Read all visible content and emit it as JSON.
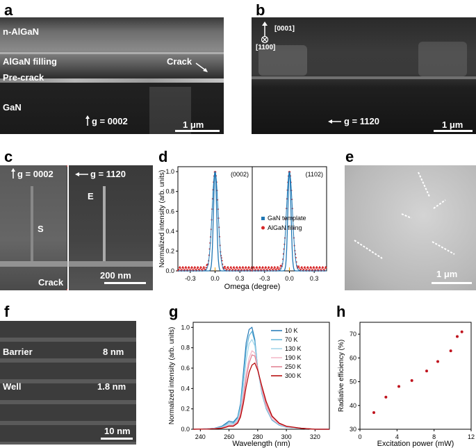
{
  "panels": {
    "a": {
      "letter": "a",
      "labels": {
        "nalgan": "n-AlGaN",
        "filling": "AlGaN filling",
        "precrack": "Pre-crack",
        "gan": "GaN",
        "crack": "Crack",
        "g": "g = 0002"
      },
      "scale": "1 μm"
    },
    "b": {
      "letter": "b",
      "labels": {
        "dir1": "[0001]",
        "dir2": "[1100]",
        "g": "g = 1120"
      },
      "scale": "1 μm"
    },
    "c": {
      "letter": "c",
      "labels": {
        "g_left": "g = 0002",
        "g_right": "g = 1120",
        "s": "S",
        "e": "E",
        "crack": "Crack"
      },
      "scale": "200 nm"
    },
    "e": {
      "letter": "e",
      "scale": "1 μm"
    },
    "f": {
      "letter": "f",
      "labels": {
        "barrier": "Barrier",
        "barrier_val": "8 nm",
        "well": "Well",
        "well_val": "1.8 nm"
      },
      "scale": "10 nm"
    }
  },
  "chart_data": [
    {
      "panel": "d",
      "type": "line",
      "ylabel": "Normalized intensity (arb. units)",
      "xlabel": "Omega (degree)",
      "subplots": [
        {
          "label": "(0002)"
        },
        {
          "label": "(1102)"
        }
      ],
      "xlim": [
        -0.45,
        0.45
      ],
      "ylim": [
        0,
        1.05
      ],
      "xticks": [
        -0.3,
        0.0,
        0.3
      ],
      "yticks": [
        0.0,
        0.2,
        0.4,
        0.6,
        0.8,
        1.0
      ],
      "series": [
        {
          "name": "GaN template",
          "color": "#1f77b4",
          "fwhm": 0.045
        },
        {
          "name": "AlGaN filling",
          "color": "#d62728",
          "fwhm": 0.085
        }
      ]
    },
    {
      "panel": "g",
      "type": "line",
      "ylabel": "Normalized intensity (arb. units)",
      "xlabel": "Wavelength (nm)",
      "xlim": [
        235,
        330
      ],
      "ylim": [
        0,
        1.05
      ],
      "xticks": [
        240,
        260,
        280,
        300,
        320
      ],
      "yticks": [
        0.0,
        0.2,
        0.4,
        0.6,
        0.8,
        1.0
      ],
      "x": [
        235,
        245,
        250,
        255,
        258,
        260,
        263,
        266,
        268,
        270,
        272,
        274,
        276,
        278,
        280,
        283,
        286,
        290,
        295,
        300,
        310,
        320,
        330
      ],
      "series": [
        {
          "name": "10 K",
          "color": "#1f77b4",
          "values": [
            0,
            0.005,
            0.01,
            0.03,
            0.06,
            0.08,
            0.07,
            0.12,
            0.25,
            0.55,
            0.85,
            0.98,
            1.0,
            0.88,
            0.6,
            0.35,
            0.2,
            0.09,
            0.04,
            0.02,
            0.01,
            0,
            0
          ]
        },
        {
          "name": "70 K",
          "color": "#5fb3d9",
          "values": [
            0,
            0.005,
            0.01,
            0.025,
            0.05,
            0.065,
            0.06,
            0.11,
            0.23,
            0.5,
            0.78,
            0.92,
            0.96,
            0.86,
            0.6,
            0.35,
            0.2,
            0.09,
            0.04,
            0.02,
            0.01,
            0,
            0
          ]
        },
        {
          "name": "130 K",
          "color": "#9fd4e8",
          "values": [
            0,
            0.004,
            0.008,
            0.02,
            0.04,
            0.05,
            0.05,
            0.09,
            0.2,
            0.42,
            0.68,
            0.84,
            0.88,
            0.82,
            0.6,
            0.36,
            0.21,
            0.1,
            0.045,
            0.02,
            0.01,
            0,
            0
          ]
        },
        {
          "name": "190 K",
          "color": "#f3b6c6",
          "values": [
            0,
            0.003,
            0.007,
            0.015,
            0.03,
            0.04,
            0.04,
            0.08,
            0.16,
            0.34,
            0.55,
            0.7,
            0.77,
            0.75,
            0.6,
            0.38,
            0.22,
            0.1,
            0.05,
            0.025,
            0.01,
            0,
            0
          ]
        },
        {
          "name": "250 K",
          "color": "#e07a8e",
          "values": [
            0,
            0.003,
            0.006,
            0.012,
            0.025,
            0.035,
            0.035,
            0.07,
            0.14,
            0.3,
            0.5,
            0.65,
            0.73,
            0.72,
            0.6,
            0.4,
            0.24,
            0.12,
            0.055,
            0.025,
            0.01,
            0,
            0
          ]
        },
        {
          "name": "300 K",
          "color": "#b30000",
          "values": [
            0,
            0.002,
            0.005,
            0.01,
            0.02,
            0.03,
            0.03,
            0.06,
            0.12,
            0.25,
            0.42,
            0.56,
            0.63,
            0.65,
            0.58,
            0.42,
            0.27,
            0.13,
            0.06,
            0.03,
            0.01,
            0,
            0
          ]
        }
      ]
    },
    {
      "panel": "h",
      "type": "scatter",
      "ylabel": "Radiative efficiency (%)",
      "xlabel": "Excitation power (mW)",
      "xlim": [
        0,
        12
      ],
      "ylim": [
        30,
        75
      ],
      "xticks": [
        0,
        4,
        8,
        12
      ],
      "yticks": [
        30,
        40,
        50,
        60,
        70
      ],
      "color": "#c0141e",
      "x": [
        1.5,
        2.8,
        4.2,
        5.6,
        7.2,
        8.4,
        9.8,
        10.5,
        11.0
      ],
      "y": [
        37,
        43.5,
        48,
        50.5,
        54.5,
        58.5,
        63,
        69,
        71
      ]
    }
  ]
}
